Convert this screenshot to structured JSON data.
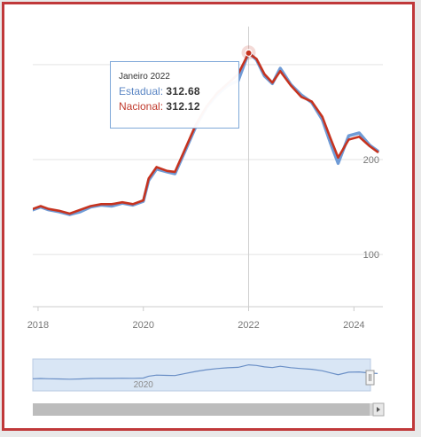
{
  "chart_data": {
    "type": "line",
    "title": "",
    "xlabel": "",
    "ylabel": "",
    "x_ticks": [
      "2018",
      "2020",
      "2022",
      "2024"
    ],
    "y_ticks": [
      "100",
      "200"
    ],
    "ylim": [
      45,
      340
    ],
    "xlim": [
      2017.9,
      2024.55
    ],
    "grid": "horizontal",
    "series": [
      {
        "name": "Estadual",
        "color": "#6f9bd6",
        "points": [
          [
            2017.9,
            147
          ],
          [
            2018.05,
            150
          ],
          [
            2018.2,
            147
          ],
          [
            2018.4,
            145
          ],
          [
            2018.6,
            142
          ],
          [
            2018.8,
            145
          ],
          [
            2019.0,
            150
          ],
          [
            2019.2,
            152
          ],
          [
            2019.4,
            151
          ],
          [
            2019.6,
            154
          ],
          [
            2019.8,
            152
          ],
          [
            2020.0,
            156
          ],
          [
            2020.1,
            178
          ],
          [
            2020.25,
            190
          ],
          [
            2020.45,
            187
          ],
          [
            2020.6,
            185
          ],
          [
            2020.8,
            210
          ],
          [
            2021.0,
            235
          ],
          [
            2021.2,
            255
          ],
          [
            2021.4,
            268
          ],
          [
            2021.6,
            278
          ],
          [
            2021.8,
            283
          ],
          [
            2022.0,
            312.68
          ],
          [
            2022.15,
            305
          ],
          [
            2022.3,
            288
          ],
          [
            2022.45,
            280
          ],
          [
            2022.6,
            296
          ],
          [
            2022.8,
            279
          ],
          [
            2023.0,
            268
          ],
          [
            2023.2,
            260
          ],
          [
            2023.4,
            242
          ],
          [
            2023.55,
            218
          ],
          [
            2023.7,
            196
          ],
          [
            2023.9,
            225
          ],
          [
            2024.1,
            228
          ],
          [
            2024.3,
            215
          ],
          [
            2024.45,
            209
          ]
        ]
      },
      {
        "name": "Nacional",
        "color": "#c6331f",
        "points": [
          [
            2017.9,
            148
          ],
          [
            2018.05,
            151
          ],
          [
            2018.2,
            148
          ],
          [
            2018.4,
            146
          ],
          [
            2018.6,
            143
          ],
          [
            2018.8,
            147
          ],
          [
            2019.0,
            151
          ],
          [
            2019.2,
            153
          ],
          [
            2019.4,
            153
          ],
          [
            2019.6,
            155
          ],
          [
            2019.8,
            153
          ],
          [
            2020.0,
            157
          ],
          [
            2020.1,
            180
          ],
          [
            2020.25,
            192
          ],
          [
            2020.45,
            188
          ],
          [
            2020.6,
            187
          ],
          [
            2020.8,
            212
          ],
          [
            2021.0,
            237
          ],
          [
            2021.2,
            256
          ],
          [
            2021.4,
            270
          ],
          [
            2021.6,
            280
          ],
          [
            2021.8,
            290
          ],
          [
            2022.0,
            312.12
          ],
          [
            2022.15,
            306
          ],
          [
            2022.3,
            290
          ],
          [
            2022.45,
            281
          ],
          [
            2022.6,
            293
          ],
          [
            2022.8,
            278
          ],
          [
            2023.0,
            266
          ],
          [
            2023.2,
            261
          ],
          [
            2023.4,
            245
          ],
          [
            2023.55,
            223
          ],
          [
            2023.7,
            202
          ],
          [
            2023.9,
            221
          ],
          [
            2024.1,
            224
          ],
          [
            2024.3,
            214
          ],
          [
            2024.45,
            208
          ]
        ]
      }
    ],
    "tooltip": {
      "title": "Janeiro 2022",
      "estadual_label": "Estadual:",
      "estadual_value": "312.68",
      "nacional_label": "Nacional:",
      "nacional_value": "312.12"
    },
    "navigator": {
      "tick_label": "2020",
      "range_selected": [
        2017.9,
        2024.45
      ]
    }
  }
}
